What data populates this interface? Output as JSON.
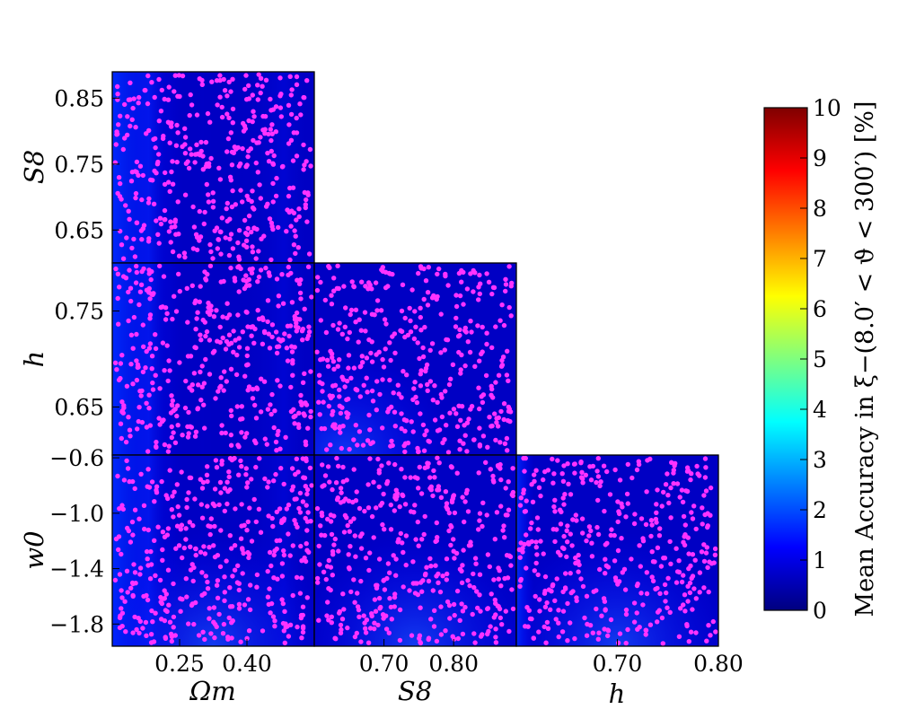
{
  "chart_data": {
    "type": "scatter",
    "title": "",
    "description_none": "",
    "parameters": [
      {
        "key": "Om",
        "label": "Ωm",
        "range": [
          0.1,
          0.55
        ],
        "ticks": [
          {
            "value": 0.25,
            "label": "0.25"
          },
          {
            "value": 0.4,
            "label": "0.40"
          }
        ]
      },
      {
        "key": "S8",
        "label": "S8",
        "range": [
          0.6,
          0.89
        ],
        "ticks": [
          {
            "value": 0.7,
            "label": "0.70"
          },
          {
            "value": 0.8,
            "label": "0.80"
          }
        ]
      },
      {
        "key": "h",
        "label": "h",
        "range": [
          0.6,
          0.8
        ],
        "ticks": [
          {
            "value": 0.7,
            "label": "0.70"
          },
          {
            "value": 0.8,
            "label": "0.80"
          }
        ]
      },
      {
        "key": "w0",
        "label": "w0",
        "range": [
          -1.96,
          -0.58
        ],
        "ticks": [
          {
            "value": -0.6,
            "label": "−0.6"
          },
          {
            "value": -1.0,
            "label": "−1.0"
          },
          {
            "value": -1.4,
            "label": "−1.4"
          },
          {
            "value": -1.8,
            "label": "−1.8"
          }
        ]
      }
    ],
    "y_axis_ticks": {
      "S8": [
        {
          "value": 0.85,
          "label": "0.85"
        },
        {
          "value": 0.75,
          "label": "0.75"
        },
        {
          "value": 0.65,
          "label": "0.65"
        }
      ],
      "h": [
        {
          "value": 0.75,
          "label": "0.75"
        },
        {
          "value": 0.65,
          "label": "0.65"
        }
      ],
      "w0": [
        {
          "value": -0.6,
          "label": "−0.6"
        },
        {
          "value": -1.0,
          "label": "−1.0"
        },
        {
          "value": -1.4,
          "label": "−1.4"
        },
        {
          "value": -1.8,
          "label": "−1.8"
        }
      ]
    },
    "panels": [
      {
        "x": "Om",
        "y": "S8"
      },
      {
        "x": "Om",
        "y": "h"
      },
      {
        "x": "S8",
        "y": "h"
      },
      {
        "x": "Om",
        "y": "w0"
      },
      {
        "x": "S8",
        "y": "w0"
      },
      {
        "x": "h",
        "y": "w0"
      }
    ],
    "points_per_panel": 400,
    "point_color": "#ff33ff",
    "colorbar": {
      "label": "Mean Accuracy in ξ−(8.0′ < ϑ < 300′) [%]",
      "range": [
        0,
        10
      ],
      "ticks": [
        "0",
        "1",
        "2",
        "3",
        "4",
        "5",
        "6",
        "7",
        "8",
        "9",
        "10"
      ],
      "colormap": "jet",
      "colors": [
        "#00007f",
        "#0000ff",
        "#007fff",
        "#00ffff",
        "#7fff7f",
        "#ffff00",
        "#ff7f00",
        "#ff0000",
        "#7f0000"
      ]
    },
    "background_value_range_percent": [
      0.2,
      1.8
    ]
  }
}
